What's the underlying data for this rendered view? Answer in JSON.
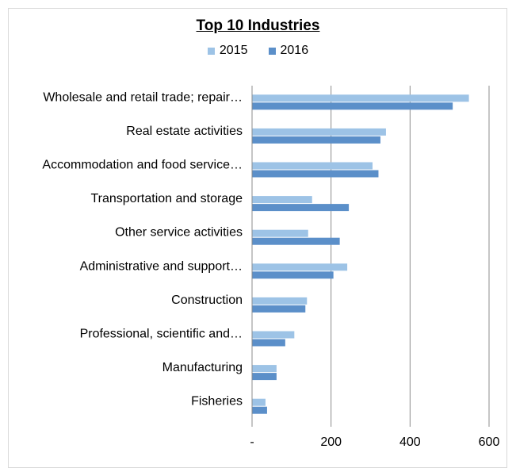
{
  "chart_data": {
    "type": "bar",
    "orientation": "horizontal",
    "title": "Top 10 Industries",
    "categories": [
      "Wholesale and retail trade; repair…",
      "Real estate activities",
      "Accommodation and food service…",
      "Transportation and storage",
      "Other service  activities",
      "Administrative  and support…",
      "Construction",
      "Professional, scientific  and…",
      "Manufacturing",
      "Fisheries"
    ],
    "series": [
      {
        "name": "2015",
        "color": "#9dc3e6",
        "values": [
          549,
          339,
          305,
          152,
          142,
          241,
          139,
          107,
          62,
          34
        ]
      },
      {
        "name": "2016",
        "color": "#5b8fc9",
        "values": [
          508,
          325,
          320,
          245,
          222,
          206,
          135,
          84,
          62,
          38
        ]
      }
    ],
    "xticks": [
      "-",
      "200",
      "400",
      "600"
    ],
    "xlim": [
      0,
      600
    ],
    "grid": "vertical",
    "legend_position": "top"
  }
}
